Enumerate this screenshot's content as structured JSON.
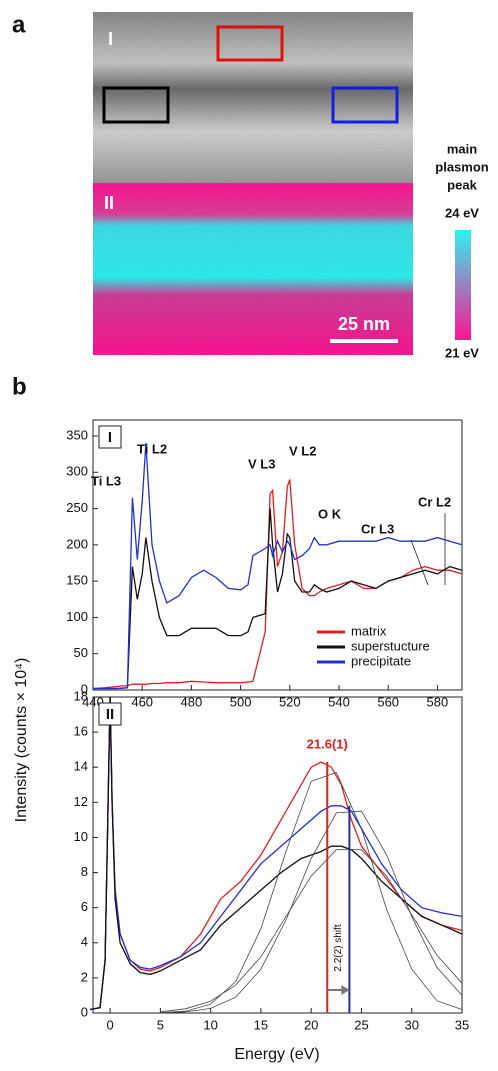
{
  "panel_labels": [
    "a",
    "b"
  ],
  "image_panel": {
    "region_labels": [
      "I",
      "II"
    ],
    "scale_bar": "25 nm",
    "colorbar": {
      "title_lines": [
        "main",
        "plasmon",
        "peak"
      ],
      "max_label": "24 eV",
      "min_label": "21 eV",
      "colors": [
        "#30f0f0",
        "#ff1493"
      ]
    }
  },
  "y_axis_label": "Intensity (counts × 10⁴)",
  "x_axis_label": "Energy (eV)",
  "chart_data": [
    {
      "type": "line",
      "panel_label": "I",
      "x": [
        440,
        445,
        450,
        454,
        456,
        458,
        460,
        461.5,
        464,
        467,
        470,
        475,
        480,
        485,
        490,
        495,
        500,
        503,
        505,
        510,
        512,
        513,
        515,
        517,
        519,
        520,
        522,
        525,
        528,
        530,
        532,
        535,
        540,
        545,
        550,
        555,
        560,
        565,
        570,
        575,
        580,
        585,
        590
      ],
      "series": [
        {
          "name": "matrix",
          "color": "#e02020",
          "values": [
            2,
            3,
            5,
            6,
            8,
            8,
            8,
            8,
            9,
            9,
            10,
            10,
            12,
            11,
            10,
            10,
            10,
            11,
            12,
            80,
            270,
            275,
            170,
            190,
            280,
            290,
            200,
            140,
            130,
            130,
            135,
            140,
            145,
            150,
            140,
            140,
            150,
            155,
            165,
            170,
            165,
            165,
            160
          ]
        },
        {
          "name": "superstucture",
          "color": "#111111",
          "values": [
            2,
            2,
            2,
            3,
            170,
            125,
            160,
            210,
            150,
            100,
            75,
            75,
            85,
            85,
            85,
            75,
            75,
            80,
            100,
            105,
            250,
            200,
            135,
            160,
            215,
            210,
            150,
            135,
            135,
            145,
            140,
            135,
            140,
            150,
            145,
            140,
            150,
            155,
            160,
            165,
            160,
            170,
            165
          ]
        },
        {
          "name": "precipitate",
          "color": "#2030d0",
          "values": [
            2,
            2,
            2,
            3,
            265,
            180,
            260,
            340,
            200,
            150,
            120,
            130,
            155,
            165,
            155,
            140,
            138,
            145,
            185,
            195,
            200,
            185,
            205,
            190,
            205,
            200,
            180,
            185,
            195,
            210,
            200,
            200,
            205,
            205,
            205,
            205,
            210,
            205,
            205,
            205,
            210,
            205,
            200
          ]
        }
      ],
      "annotations": [
        "Ti L3",
        "Ti L2",
        "V L3",
        "V L2",
        "O K",
        "Cr L3",
        "Cr L2"
      ],
      "xlim": [
        440,
        590
      ],
      "xticks": [
        440,
        460,
        480,
        500,
        520,
        540,
        560,
        580
      ],
      "ylim": [
        0,
        372
      ],
      "yticks": [
        0,
        50,
        100,
        150,
        200,
        250,
        300,
        350
      ],
      "legend": "lower right"
    },
    {
      "type": "line",
      "panel_label": "II",
      "x": [
        -2,
        -1,
        -0.5,
        -0.2,
        0,
        0.2,
        0.5,
        1,
        2,
        3,
        4,
        5,
        7,
        9,
        11,
        13,
        15,
        17,
        19,
        20,
        21,
        22,
        23,
        24,
        25,
        27,
        29,
        31,
        33,
        35
      ],
      "series": [
        {
          "color": "#e02020",
          "values": [
            0.2,
            0.3,
            3,
            12,
            18,
            12,
            7,
            4.5,
            3,
            2.5,
            2.4,
            2.6,
            3.2,
            4.5,
            6.5,
            7.5,
            9,
            11,
            13,
            14,
            14.3,
            14,
            13,
            11,
            9.5,
            8,
            6.5,
            5.5,
            5,
            4.7
          ]
        },
        {
          "color": "#2030d0",
          "values": [
            0.2,
            0.3,
            3,
            12,
            18,
            12,
            7,
            4.5,
            3,
            2.6,
            2.5,
            2.7,
            3.2,
            4,
            5.5,
            7,
            8.5,
            9.5,
            10.5,
            11,
            11.5,
            11.8,
            11.8,
            11.5,
            10.5,
            8.5,
            7,
            6,
            5.7,
            5.5
          ]
        },
        {
          "color": "#111111",
          "values": [
            0.2,
            0.3,
            3,
            12,
            18,
            12,
            6.5,
            4,
            2.8,
            2.3,
            2.2,
            2.4,
            3,
            3.6,
            5,
            6,
            7,
            8,
            8.8,
            9,
            9.2,
            9.5,
            9.5,
            9.3,
            8.8,
            7.5,
            6.5,
            5.5,
            5,
            4.5
          ]
        },
        {
          "color": "#444444",
          "x": [
            5,
            7.5,
            10,
            12.5,
            15,
            17.5,
            20,
            22.5,
            25,
            27.5,
            30,
            32.5,
            35
          ],
          "values": [
            0.02,
            0.1,
            0.5,
            1.8,
            4.8,
            9.2,
            13.2,
            13.7,
            10.5,
            5.9,
            2.5,
            0.7,
            0.2
          ]
        },
        {
          "color": "#444444",
          "x": [
            5,
            7.5,
            10,
            12.5,
            15,
            17.5,
            20,
            22.5,
            25,
            27.5,
            30,
            32.5,
            35
          ],
          "values": [
            0.01,
            0.06,
            0.26,
            0.9,
            2.5,
            5.3,
            8.8,
            11.4,
            11.5,
            9,
            5.5,
            2.6,
            1
          ]
        },
        {
          "color": "#444444",
          "x": [
            5,
            7.5,
            10,
            12.5,
            15,
            17.5,
            20,
            22.5,
            25,
            27.5,
            30,
            32.5,
            35
          ],
          "values": [
            0.07,
            0.24,
            0.67,
            1.6,
            3.2,
            5.5,
            7.8,
            9.3,
            9.3,
            7.8,
            5.6,
            3.3,
            1.7
          ]
        }
      ],
      "markers": [
        {
          "x": 21.6,
          "top": 14.3,
          "color": "#e02020"
        },
        {
          "x": 23.8,
          "top": 11.8,
          "color": "#2030a0"
        }
      ],
      "annotations": [
        "21.6(1)",
        "2.2(2) shift"
      ],
      "xlim": [
        -1.7,
        35
      ],
      "xticks": [
        0,
        5,
        10,
        15,
        20,
        25,
        30,
        35
      ],
      "ylim": [
        0,
        18
      ],
      "yticks": [
        0,
        2,
        4,
        6,
        8,
        10,
        12,
        14,
        16,
        18
      ]
    }
  ]
}
